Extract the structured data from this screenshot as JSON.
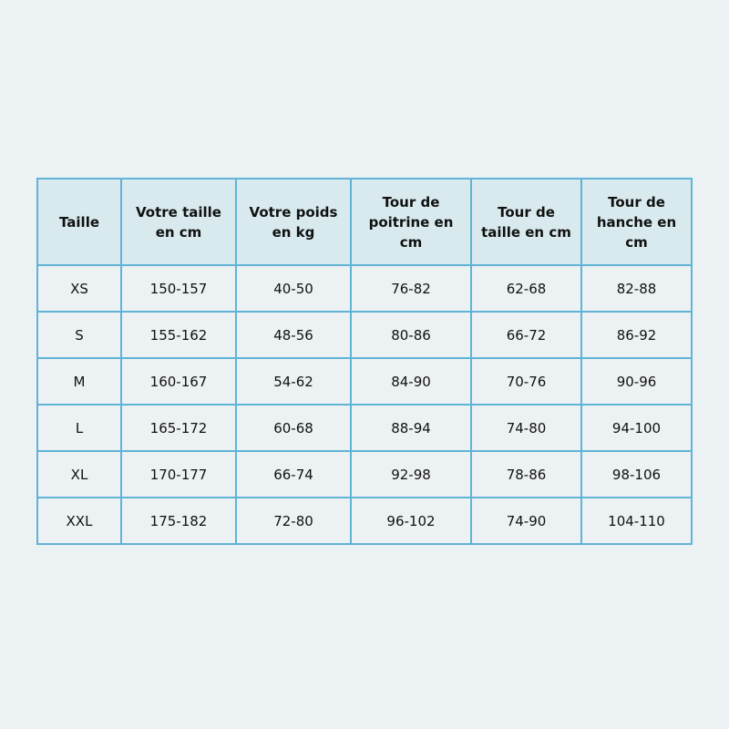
{
  "table": {
    "headers": [
      "Taille",
      "Votre taille en cm",
      "Votre poids en kg",
      "Tour de poitrine en cm",
      "Tour de taille en cm",
      "Tour de hanche en cm"
    ],
    "rows": [
      [
        "XS",
        "150-157",
        "40-50",
        "76-82",
        "62-68",
        "82-88"
      ],
      [
        "S",
        "155-162",
        "48-56",
        "80-86",
        "66-72",
        "86-92"
      ],
      [
        "M",
        "160-167",
        "54-62",
        "84-90",
        "70-76",
        "90-96"
      ],
      [
        "L",
        "165-172",
        "60-68",
        "88-94",
        "74-80",
        "94-100"
      ],
      [
        "XL",
        "170-177",
        "66-74",
        "92-98",
        "78-86",
        "98-106"
      ],
      [
        "XXL",
        "175-182",
        "72-80",
        "96-102",
        "74-90",
        "104-110"
      ]
    ]
  },
  "colors": {
    "background": "#ecf1f4",
    "header_bg": "#d8eaee",
    "border": "#5fb4d6"
  }
}
